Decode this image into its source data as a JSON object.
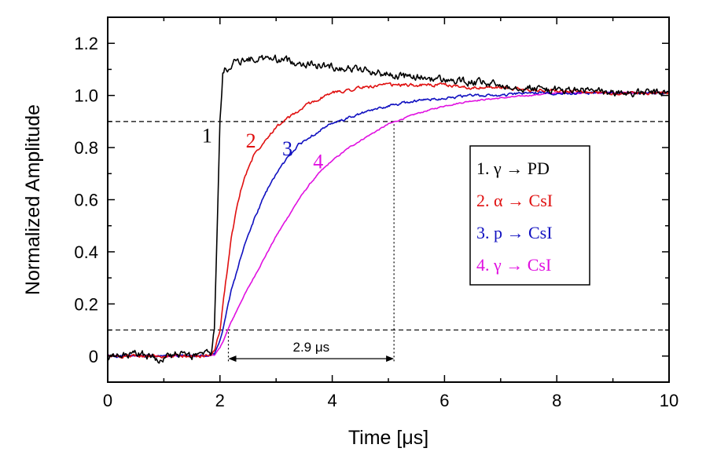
{
  "chart_data": {
    "type": "line",
    "title": "",
    "xlabel": "Time [μs]",
    "ylabel": "Normalized Amplitude",
    "xlim": [
      0,
      10
    ],
    "ylim": [
      -0.1,
      1.3
    ],
    "xticks": [
      0,
      2,
      4,
      6,
      8,
      10
    ],
    "yticks": [
      0,
      0.2,
      0.4,
      0.6,
      0.8,
      1.0,
      1.2
    ],
    "xtick_labels": [
      "0",
      "2",
      "4",
      "6",
      "8",
      "10"
    ],
    "ytick_labels": [
      "0",
      "0.2",
      "0.4",
      "0.6",
      "0.8",
      "1.0",
      "1.2"
    ],
    "grid": false,
    "legend_position": "right",
    "series": [
      {
        "name": "1. γ → PD",
        "label": "1",
        "color": "#000000",
        "noise": 0.012,
        "x": [
          0,
          0.3,
          0.6,
          0.9,
          1.2,
          1.5,
          1.7,
          1.85,
          1.9,
          1.95,
          2.0,
          2.05,
          2.1,
          2.15,
          2.2,
          2.3,
          2.5,
          2.7,
          3.0,
          3.3,
          3.6,
          4.0,
          4.5,
          5.0,
          5.5,
          6.0,
          6.5,
          7.0,
          7.5,
          8.0,
          8.5,
          9.0,
          9.5,
          10.0
        ],
        "y": [
          -0.01,
          0.0,
          0.01,
          -0.01,
          0.005,
          0.0,
          0.005,
          0.01,
          0.1,
          0.5,
          0.9,
          1.08,
          1.1,
          1.11,
          1.12,
          1.13,
          1.14,
          1.14,
          1.14,
          1.13,
          1.12,
          1.11,
          1.1,
          1.08,
          1.07,
          1.06,
          1.05,
          1.04,
          1.03,
          1.02,
          1.02,
          1.01,
          1.01,
          1.01
        ]
      },
      {
        "name": "2. α → CsI",
        "label": "2",
        "color": "#e01010",
        "noise": 0.005,
        "x": [
          0,
          0.5,
          1.0,
          1.5,
          1.8,
          1.9,
          2.0,
          2.1,
          2.2,
          2.3,
          2.4,
          2.5,
          2.6,
          2.7,
          2.8,
          3.0,
          3.2,
          3.4,
          3.6,
          3.8,
          4.0,
          4.5,
          5.0,
          5.5,
          6.0,
          6.5,
          7.0,
          7.5,
          8.0,
          8.5,
          9.0,
          9.5,
          10.0
        ],
        "y": [
          0.0,
          0.0,
          0.0,
          0.0,
          0.0,
          0.02,
          0.1,
          0.28,
          0.45,
          0.57,
          0.66,
          0.72,
          0.77,
          0.8,
          0.83,
          0.88,
          0.91,
          0.94,
          0.97,
          0.99,
          1.01,
          1.03,
          1.04,
          1.04,
          1.04,
          1.03,
          1.03,
          1.02,
          1.02,
          1.01,
          1.01,
          1.01,
          1.01
        ]
      },
      {
        "name": "3. p → CsI",
        "label": "3",
        "color": "#1010c0",
        "noise": 0.004,
        "x": [
          0,
          0.5,
          1.0,
          1.5,
          1.8,
          1.9,
          2.0,
          2.1,
          2.2,
          2.4,
          2.6,
          2.8,
          3.0,
          3.2,
          3.4,
          3.6,
          3.8,
          4.0,
          4.5,
          5.0,
          5.5,
          6.0,
          6.5,
          7.0,
          7.5,
          8.0,
          8.5,
          9.0,
          9.5,
          10.0
        ],
        "y": [
          0.0,
          0.0,
          0.0,
          0.0,
          0.0,
          0.01,
          0.06,
          0.15,
          0.25,
          0.4,
          0.52,
          0.62,
          0.7,
          0.76,
          0.81,
          0.84,
          0.87,
          0.89,
          0.93,
          0.96,
          0.98,
          0.99,
          1.0,
          1.0,
          1.01,
          1.01,
          1.01,
          1.01,
          1.01,
          1.01
        ]
      },
      {
        "name": "4. γ → CsI",
        "label": "4",
        "color": "#e010e0",
        "noise": 0.002,
        "x": [
          0,
          0.5,
          1.0,
          1.5,
          1.8,
          1.9,
          2.0,
          2.1,
          2.2,
          2.4,
          2.6,
          2.8,
          3.0,
          3.2,
          3.4,
          3.6,
          3.8,
          4.0,
          4.3,
          4.6,
          5.0,
          5.5,
          6.0,
          6.5,
          7.0,
          7.5,
          8.0,
          8.5,
          9.0,
          9.5,
          10.0
        ],
        "y": [
          0.0,
          0.0,
          0.0,
          0.0,
          0.0,
          0.005,
          0.03,
          0.08,
          0.13,
          0.22,
          0.3,
          0.38,
          0.46,
          0.53,
          0.6,
          0.66,
          0.71,
          0.75,
          0.8,
          0.84,
          0.89,
          0.93,
          0.96,
          0.98,
          0.99,
          1.0,
          1.01,
          1.01,
          1.01,
          1.01,
          1.01
        ]
      }
    ],
    "reference_lines": [
      {
        "type": "horizontal",
        "y": 0.9,
        "style": "dashed"
      },
      {
        "type": "horizontal",
        "y": 0.1,
        "style": "dashed"
      },
      {
        "type": "vertical",
        "x": 2.15,
        "y_from": -0.02,
        "y_to": 0.1,
        "style": "dotted"
      },
      {
        "type": "vertical",
        "x": 5.1,
        "y_from": -0.02,
        "y_to": 0.9,
        "style": "dotted"
      }
    ],
    "annotations": [
      {
        "text": "2.9 μs",
        "x_from": 2.15,
        "x_to": 5.1,
        "y": -0.01,
        "arrow": "double"
      },
      {
        "text": "1",
        "x": 1.77,
        "y": 0.82,
        "color": "#000000"
      },
      {
        "text": "2",
        "x": 2.55,
        "y": 0.8,
        "color": "#e01010"
      },
      {
        "text": "3",
        "x": 3.2,
        "y": 0.77,
        "color": "#1010c0"
      },
      {
        "text": "4",
        "x": 3.75,
        "y": 0.72,
        "color": "#e010e0"
      }
    ],
    "legend": [
      {
        "text": "1. γ → PD",
        "color": "#000000"
      },
      {
        "text": "2. α → CsI",
        "color": "#e01010"
      },
      {
        "text": "3. p → CsI",
        "color": "#1010c0"
      },
      {
        "text": "4. γ → CsI",
        "color": "#e010e0"
      }
    ]
  }
}
